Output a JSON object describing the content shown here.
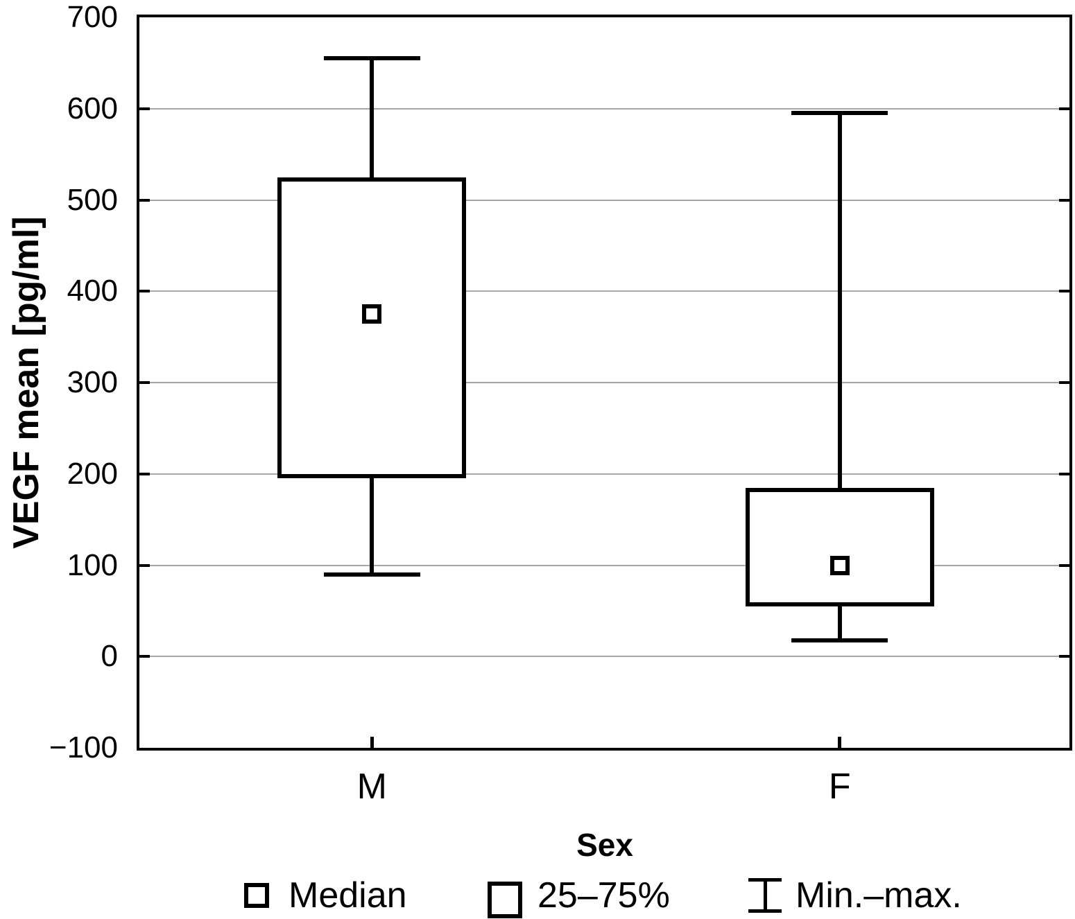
{
  "chart_data": {
    "type": "box",
    "title": "",
    "xlabel": "Sex",
    "ylabel": "VEGF mean [pg/ml]",
    "ylim": [
      -100,
      700
    ],
    "yticks": [
      700,
      600,
      500,
      400,
      300,
      200,
      100,
      0,
      -100
    ],
    "categories": [
      "M",
      "F"
    ],
    "series": [
      {
        "category": "M",
        "min": 90,
        "q1": 195,
        "median": 375,
        "q3": 525,
        "max": 655
      },
      {
        "category": "F",
        "min": 18,
        "q1": 55,
        "median": 100,
        "q3": 185,
        "max": 595
      }
    ],
    "legend": [
      {
        "marker": "median-square",
        "label": "Median"
      },
      {
        "marker": "iqr-box",
        "label": "25–75%"
      },
      {
        "marker": "min-max-whisker",
        "label": "Min.–max."
      }
    ],
    "grid": "horizontal",
    "legend_position": "bottom",
    "colors": {
      "line": "#000000",
      "gridline": "#a6a6a6",
      "box_fill": "#ffffff",
      "background": "#ffffff"
    }
  }
}
